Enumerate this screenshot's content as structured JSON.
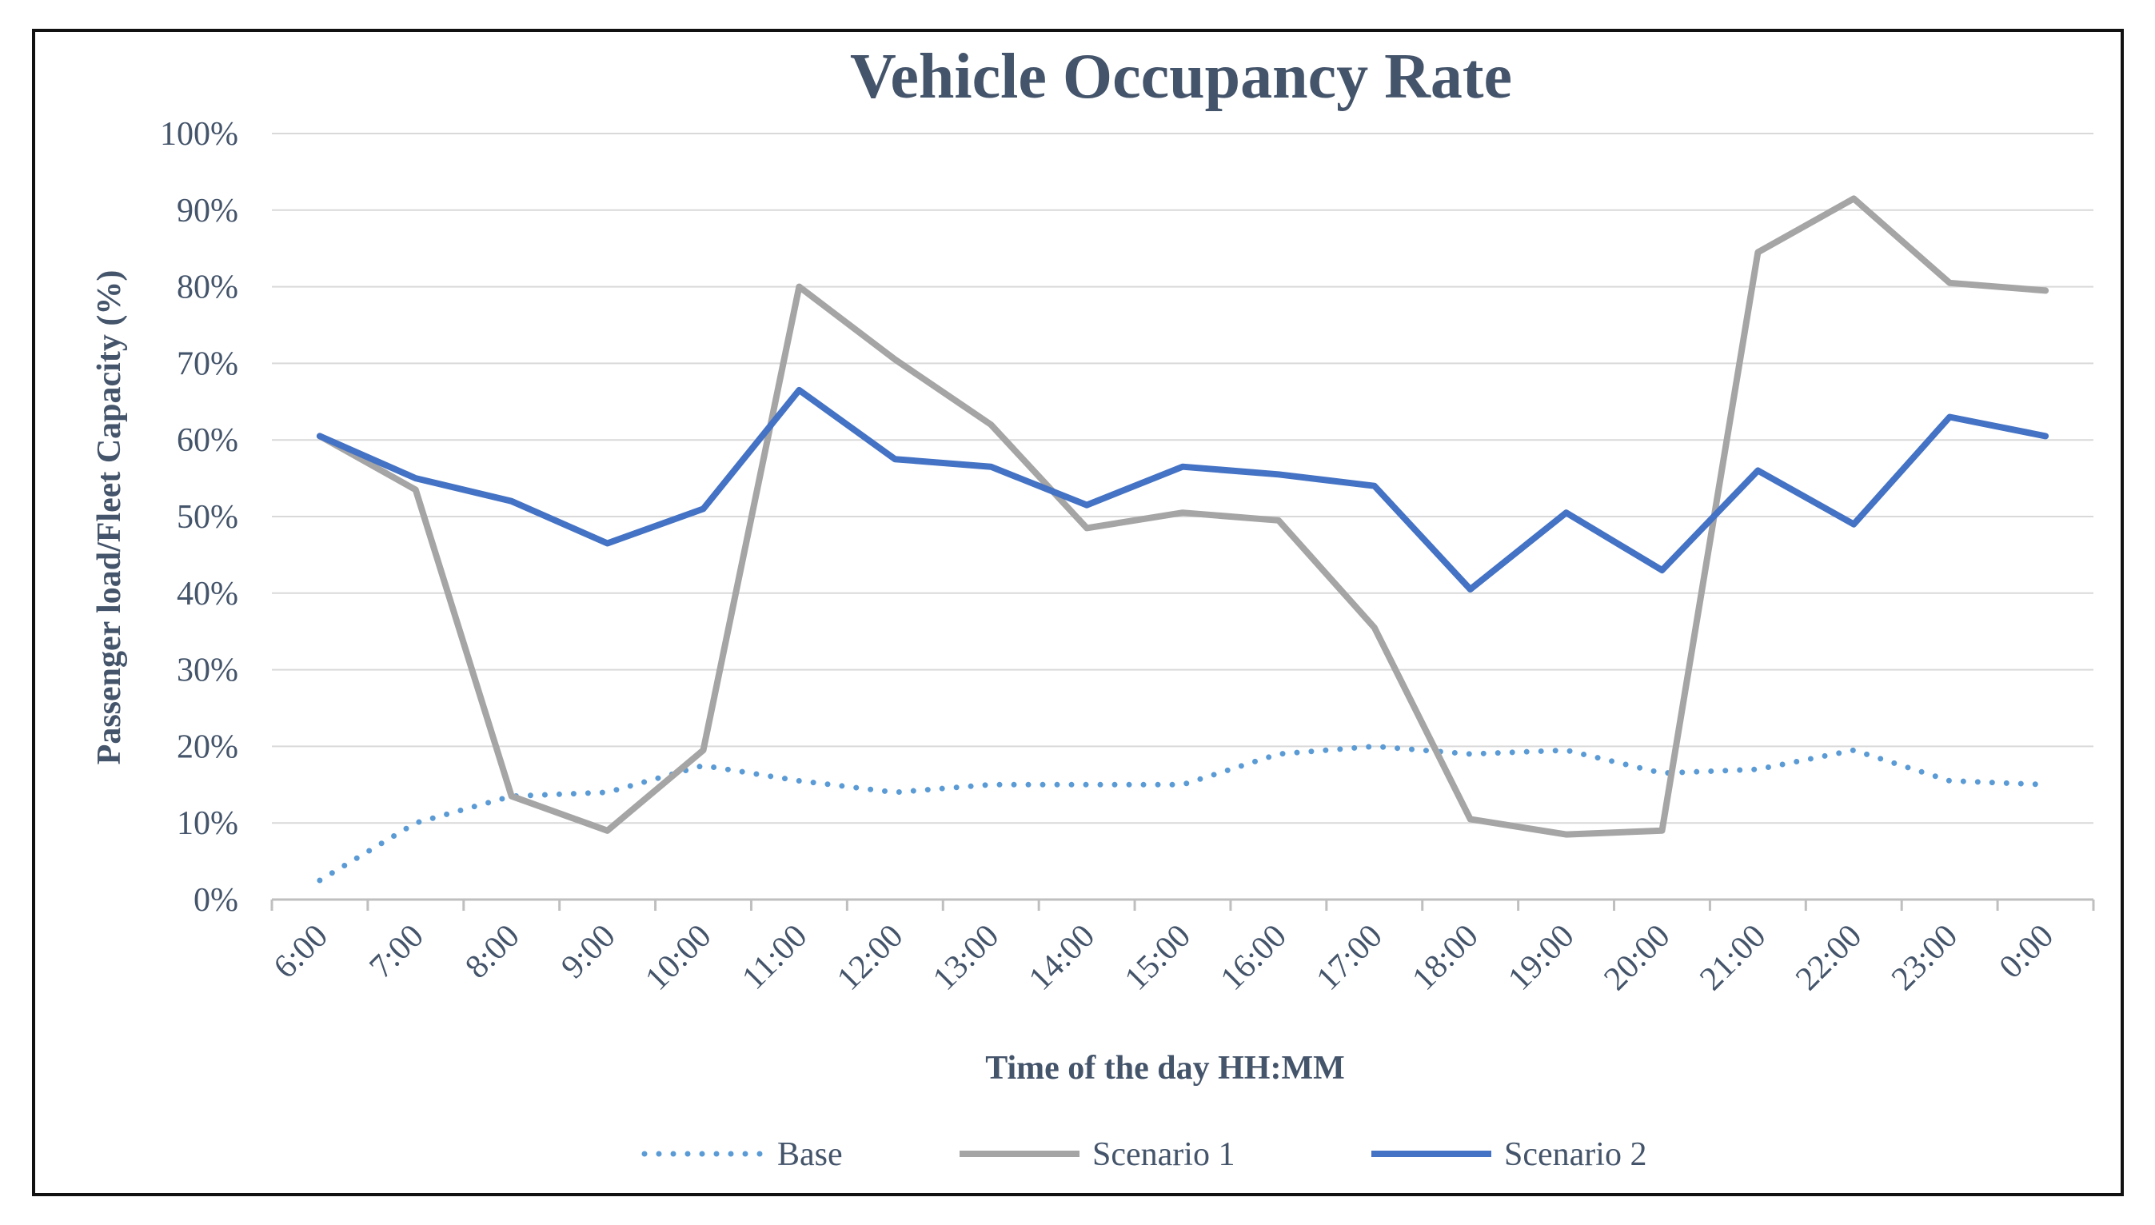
{
  "chart_data": {
    "type": "line",
    "title": "Vehicle Occupancy Rate",
    "xlabel": "Time of the day HH:MM",
    "ylabel": "Passenger load/Fleet Capacity (%)",
    "categories": [
      "6:00",
      "7:00",
      "8:00",
      "9:00",
      "10:00",
      "11:00",
      "12:00",
      "13:00",
      "14:00",
      "15:00",
      "16:00",
      "17:00",
      "18:00",
      "19:00",
      "20:00",
      "21:00",
      "22:00",
      "23:00",
      "0:00"
    ],
    "y_ticks": [
      "0%",
      "10%",
      "20%",
      "30%",
      "40%",
      "50%",
      "60%",
      "70%",
      "80%",
      "90%",
      "100%"
    ],
    "ylim": [
      0,
      100
    ],
    "grid": true,
    "legend_position": "bottom",
    "series": [
      {
        "name": "Base",
        "color": "#5b9bd5",
        "style": "dotted",
        "values": [
          2.5,
          10,
          13.5,
          14,
          17.5,
          15.5,
          14,
          15,
          15,
          15,
          19,
          20,
          19,
          19.5,
          16.5,
          17,
          19.5,
          15.5,
          15
        ]
      },
      {
        "name": "Scenario 1",
        "color": "#a5a5a5",
        "style": "solid",
        "values": [
          60.5,
          53.5,
          13.5,
          9,
          19.5,
          80,
          70.5,
          62,
          48.5,
          50.5,
          49.5,
          35.5,
          10.5,
          8.5,
          9,
          84.5,
          91.5,
          80.5,
          79.5
        ]
      },
      {
        "name": "Scenario 2",
        "color": "#4472c4",
        "style": "solid",
        "values": [
          60.5,
          55,
          52,
          46.5,
          51,
          66.5,
          57.5,
          56.5,
          51.5,
          56.5,
          55.5,
          54,
          40.5,
          50.5,
          43,
          56,
          49,
          63,
          60.5
        ]
      }
    ]
  }
}
